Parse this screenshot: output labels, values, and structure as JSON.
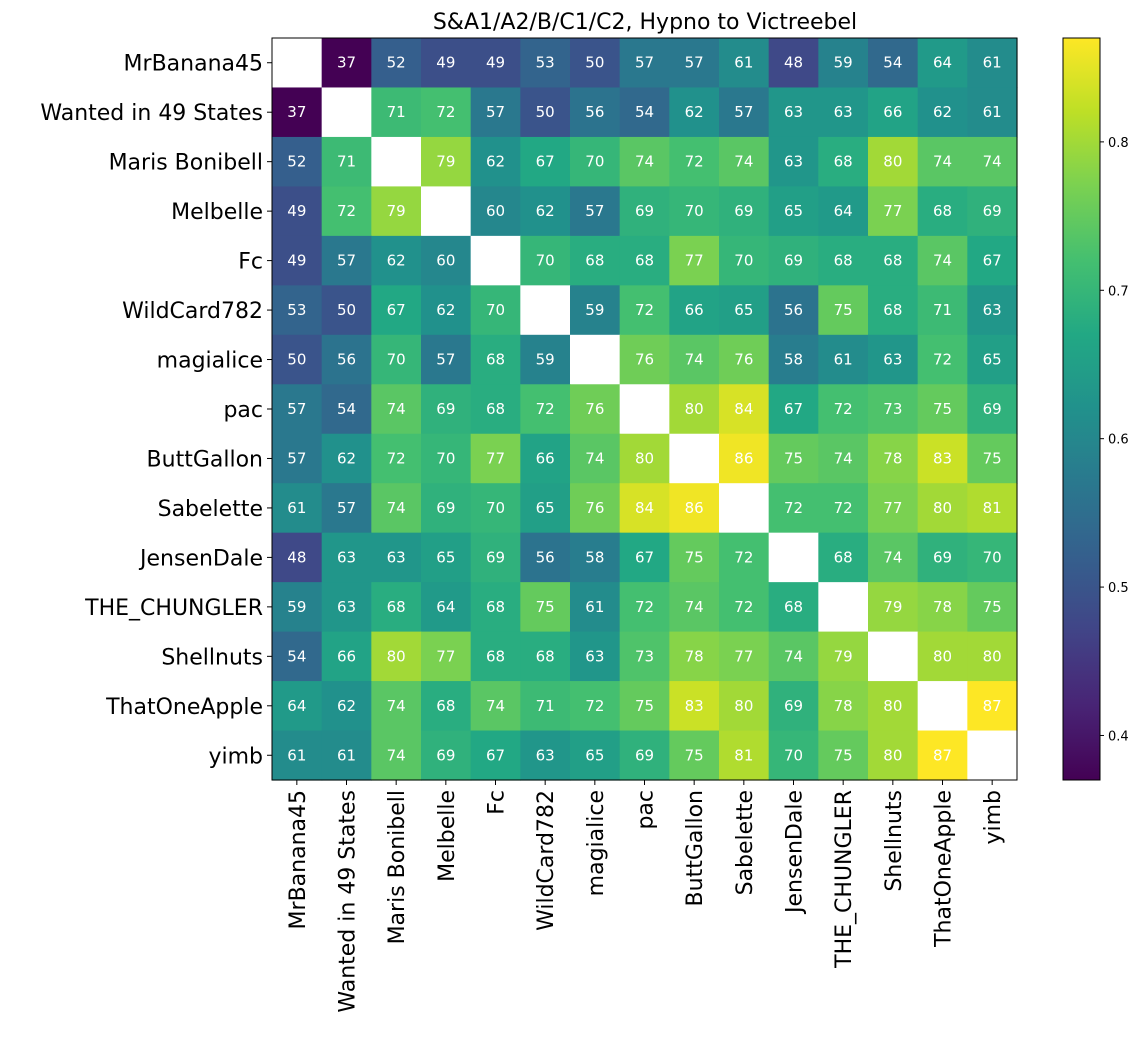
{
  "chart_data": {
    "type": "heatmap",
    "title": "S&A1/A2/B/C1/C2, Hypno to Victreebel",
    "xlabel": "",
    "ylabel": "",
    "colormap": "viridis",
    "value_range": [
      0.37,
      0.87
    ],
    "cell_label_scale": 100,
    "diagonal": "blank",
    "labels": [
      "MrBanana45",
      "Wanted in 49 States",
      "Maris Bonibell",
      "Melbelle",
      "Fc",
      "WildCard782",
      "magialice",
      "pac",
      "ButtGallon",
      "Sabelette",
      "JensenDale",
      "THE_CHUNGLER",
      "Shellnuts",
      "ThatOneApple",
      "yimb"
    ],
    "matrix": [
      [
        null,
        37,
        52,
        49,
        49,
        53,
        50,
        57,
        57,
        61,
        48,
        59,
        54,
        64,
        61
      ],
      [
        37,
        null,
        71,
        72,
        57,
        50,
        56,
        54,
        62,
        57,
        63,
        63,
        66,
        62,
        61
      ],
      [
        52,
        71,
        null,
        79,
        62,
        67,
        70,
        74,
        72,
        74,
        63,
        68,
        80,
        74,
        74
      ],
      [
        49,
        72,
        79,
        null,
        60,
        62,
        57,
        69,
        70,
        69,
        65,
        64,
        77,
        68,
        69
      ],
      [
        49,
        57,
        62,
        60,
        null,
        70,
        68,
        68,
        77,
        70,
        69,
        68,
        68,
        74,
        67
      ],
      [
        53,
        50,
        67,
        62,
        70,
        null,
        59,
        72,
        66,
        65,
        56,
        75,
        68,
        71,
        63
      ],
      [
        50,
        56,
        70,
        57,
        68,
        59,
        null,
        76,
        74,
        76,
        58,
        61,
        63,
        72,
        65
      ],
      [
        57,
        54,
        74,
        69,
        68,
        72,
        76,
        null,
        80,
        84,
        67,
        72,
        73,
        75,
        69
      ],
      [
        57,
        62,
        72,
        70,
        77,
        66,
        74,
        80,
        null,
        86,
        75,
        74,
        78,
        83,
        75
      ],
      [
        61,
        57,
        74,
        69,
        70,
        65,
        76,
        84,
        86,
        null,
        72,
        72,
        77,
        80,
        81
      ],
      [
        48,
        63,
        63,
        65,
        69,
        56,
        58,
        67,
        75,
        72,
        null,
        68,
        74,
        69,
        70
      ],
      [
        59,
        63,
        68,
        64,
        68,
        75,
        61,
        72,
        74,
        72,
        68,
        null,
        79,
        78,
        75
      ],
      [
        54,
        66,
        80,
        77,
        68,
        68,
        63,
        73,
        78,
        77,
        74,
        79,
        null,
        80,
        80
      ],
      [
        64,
        62,
        74,
        68,
        74,
        71,
        72,
        75,
        83,
        80,
        69,
        78,
        80,
        null,
        87
      ],
      [
        61,
        61,
        74,
        69,
        67,
        63,
        65,
        69,
        75,
        81,
        70,
        75,
        80,
        87,
        null
      ]
    ],
    "colorbar": {
      "ticks": [
        0.4,
        0.5,
        0.6,
        0.7,
        0.8
      ],
      "tick_labels": [
        "0.4",
        "0.5",
        "0.6",
        "0.7",
        "0.8"
      ],
      "range": [
        0.37,
        0.87
      ]
    }
  }
}
